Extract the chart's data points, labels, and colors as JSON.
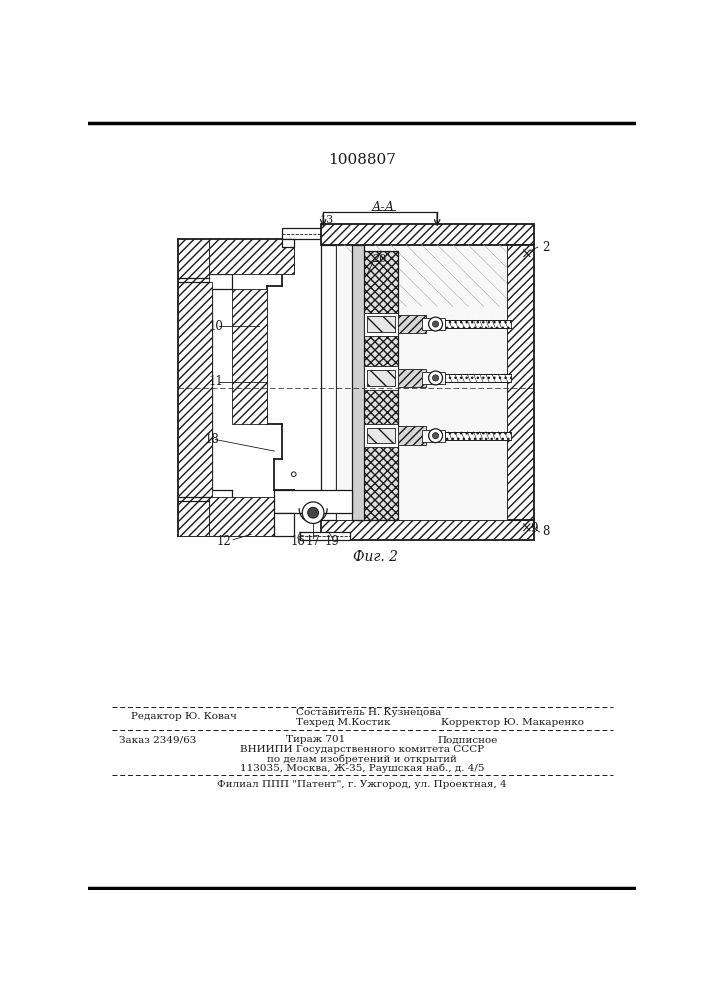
{
  "title_number": "1008807",
  "fig_label": "Фиг. 2",
  "section_label": "А-А",
  "background_color": "#ffffff",
  "drawing_color": "#1a1a1a",
  "footer": {
    "editor": "Редактор Ю. Ковач",
    "composer": "Составитель Н. Кузнецова",
    "techred": "Техред М.Костик",
    "corrector": "Корректор Ю. Макаренко",
    "order": "Заказ 2349/63",
    "tirazh": "Тираж 701",
    "podpisnoe": "Подписное",
    "vniipи": "ВНИИПИ Государственного комитета СССР",
    "dela": "по делам изобретений и открытий",
    "address": "113035, Москва, Ж-35, Раушская наб., д. 4/5",
    "filial": "Филиал ППП \"Патент\", г. Ужгород, ул. Проектная, 4"
  }
}
